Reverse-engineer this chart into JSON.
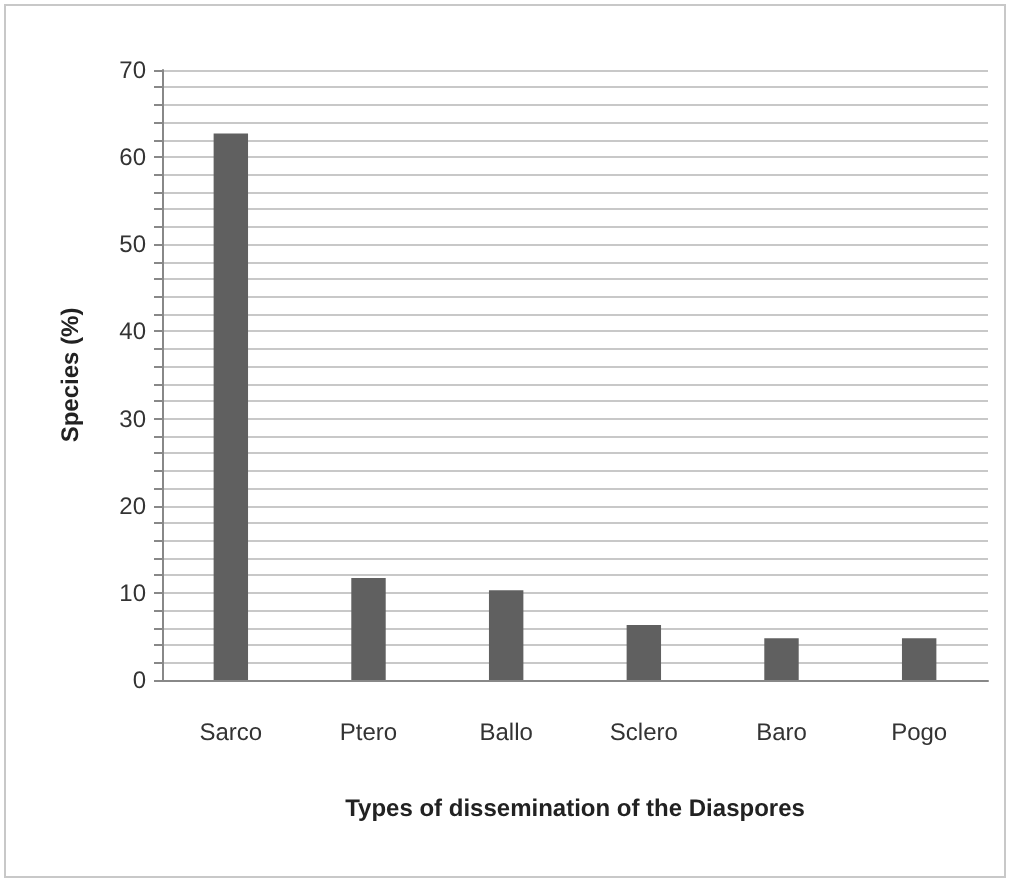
{
  "chart_data": {
    "type": "bar",
    "xlabel": "Types of dissemination of the Diaspores",
    "ylabel": "Species (%)",
    "categories": [
      "Sarco",
      "Ptero",
      "Ballo",
      "Sclero",
      "Baro",
      "Pogo"
    ],
    "values": [
      62.7,
      11.7,
      10.3,
      6.3,
      4.8,
      4.8
    ],
    "color": "#606060",
    "ylim": [
      0,
      70
    ],
    "yticks": [
      0,
      {
        "value": 2,
        "label": null
      },
      {
        "value": 4,
        "label": null
      },
      {
        "value": 6,
        "label": null
      },
      {
        "value": 8,
        "label": null
      },
      10,
      {
        "value": 12,
        "label": null
      },
      {
        "value": 14,
        "label": null
      },
      {
        "value": 16,
        "label": null
      },
      {
        "value": 18,
        "label": null
      },
      20,
      {
        "value": 22,
        "label": null
      },
      {
        "value": 24,
        "label": null
      },
      {
        "value": 26,
        "label": null
      },
      {
        "value": 28,
        "label": null
      },
      30,
      {
        "value": 32,
        "label": null
      },
      {
        "value": 34,
        "label": null
      },
      {
        "value": 36,
        "label": null
      },
      {
        "value": 38,
        "label": null
      },
      40,
      {
        "value": 42,
        "label": null
      },
      {
        "value": 44,
        "label": null
      },
      {
        "value": 46,
        "label": null
      },
      {
        "value": 48,
        "label": null
      },
      50,
      {
        "value": 52,
        "label": null
      },
      {
        "value": 54,
        "label": null
      },
      {
        "value": 56,
        "label": null
      },
      {
        "value": 58,
        "label": null
      },
      60,
      {
        "value": 62,
        "label": null
      },
      {
        "value": 64,
        "label": null
      },
      {
        "value": 66,
        "label": null
      },
      {
        "value": 68,
        "label": null
      },
      70
    ],
    "grid": "y"
  }
}
